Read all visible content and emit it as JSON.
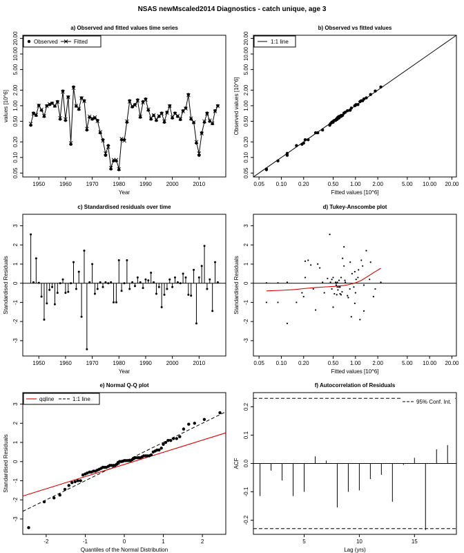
{
  "title": "NSAS newMscaled2014 Diagnostics - catch unique, age 3",
  "chart_data": [
    {
      "id": "a",
      "type": "line",
      "title": "a) Observed and fitted values time series",
      "xlabel": "Year",
      "ylabel": "values [10^6]",
      "log_y": true,
      "xlim": [
        1944,
        2020
      ],
      "ylim": [
        0.042,
        23
      ],
      "x_ticks": [
        1950,
        1960,
        1970,
        1980,
        1990,
        2000,
        2010
      ],
      "y_ticks": [
        0.05,
        0.1,
        0.2,
        0.5,
        1,
        2,
        5,
        10,
        20
      ],
      "y_tick_labels": [
        "0.05",
        "0.10",
        "0.20",
        "0.50",
        "1.00",
        "2.00",
        "5.00",
        "10.00",
        "20.00"
      ],
      "legend": {
        "position": "top-left",
        "entries": [
          "Observed",
          "Fitted"
        ]
      },
      "x": [
        1947,
        1948,
        1949,
        1950,
        1951,
        1952,
        1953,
        1954,
        1955,
        1956,
        1957,
        1958,
        1959,
        1960,
        1961,
        1962,
        1963,
        1964,
        1965,
        1966,
        1967,
        1968,
        1969,
        1970,
        1971,
        1972,
        1973,
        1974,
        1975,
        1976,
        1977,
        1978,
        1979,
        1980,
        1981,
        1982,
        1983,
        1984,
        1985,
        1986,
        1987,
        1988,
        1989,
        1990,
        1991,
        1992,
        1993,
        1994,
        1995,
        1996,
        1997,
        1998,
        1999,
        2000,
        2001,
        2002,
        2003,
        2004,
        2005,
        2006,
        2007,
        2008,
        2009,
        2010,
        2011,
        2012,
        2013,
        2014,
        2015,
        2016,
        2017
      ],
      "series": [
        {
          "name": "Observed",
          "values": [
            0.42,
            0.72,
            0.65,
            1.02,
            0.82,
            0.62,
            1.0,
            1.05,
            1.12,
            0.98,
            1.2,
            0.55,
            1.92,
            0.52,
            1.48,
            0.18,
            2.3,
            0.98,
            0.85,
            1.42,
            1.25,
            0.34,
            0.6,
            0.55,
            0.58,
            0.52,
            0.3,
            0.22,
            0.11,
            0.17,
            0.06,
            0.086,
            0.086,
            0.058,
            0.22,
            0.22,
            0.48,
            1.25,
            0.95,
            1.05,
            1.3,
            0.6,
            1.2,
            1.35,
            0.82,
            0.55,
            0.65,
            0.52,
            0.62,
            0.72,
            0.48,
            0.75,
            1.0,
            0.58,
            0.72,
            0.62,
            0.54,
            0.8,
            0.9,
            1.65,
            0.55,
            0.47,
            0.19,
            0.11,
            0.3,
            0.48,
            0.72,
            0.5,
            0.45,
            0.8,
            1.0
          ]
        },
        {
          "name": "Fitted",
          "values": [
            0.45,
            0.7,
            0.67,
            1.0,
            0.84,
            0.64,
            0.98,
            1.08,
            1.1,
            1.0,
            1.18,
            0.58,
            1.85,
            0.55,
            1.45,
            0.19,
            2.2,
            1.0,
            0.88,
            1.4,
            1.22,
            0.36,
            0.62,
            0.57,
            0.6,
            0.5,
            0.31,
            0.21,
            0.12,
            0.16,
            0.063,
            0.09,
            0.09,
            0.06,
            0.23,
            0.21,
            0.5,
            1.2,
            0.98,
            1.02,
            1.25,
            0.62,
            1.15,
            1.3,
            0.85,
            0.57,
            0.66,
            0.54,
            0.64,
            0.7,
            0.5,
            0.73,
            0.98,
            0.6,
            0.7,
            0.64,
            0.56,
            0.78,
            0.88,
            1.6,
            0.57,
            0.48,
            0.2,
            0.12,
            0.29,
            0.5,
            0.7,
            0.52,
            0.46,
            0.78,
            0.98
          ]
        }
      ]
    },
    {
      "id": "b",
      "type": "scatter",
      "title": "b) Observed vs fitted values",
      "xlabel": "Fitted values [10^6]",
      "ylabel": "Observed values [10^6]",
      "log_x": true,
      "log_y": true,
      "xlim": [
        0.042,
        23
      ],
      "ylim": [
        0.042,
        23
      ],
      "ticks": [
        0.05,
        0.1,
        0.2,
        0.5,
        1,
        2,
        5,
        10,
        20
      ],
      "tick_labels": [
        "0.05",
        "0.10",
        "0.20",
        "0.50",
        "1.00",
        "2.00",
        "5.00",
        "10.00",
        "20.00"
      ],
      "legend": {
        "position": "top-left",
        "entries": [
          "1:1 line"
        ]
      },
      "x": [
        0.063,
        0.063,
        0.09,
        0.12,
        0.12,
        0.16,
        0.19,
        0.2,
        0.21,
        0.21,
        0.23,
        0.29,
        0.31,
        0.36,
        0.45,
        0.46,
        0.48,
        0.48,
        0.5,
        0.5,
        0.52,
        0.54,
        0.55,
        0.56,
        0.57,
        0.57,
        0.58,
        0.6,
        0.6,
        0.62,
        0.64,
        0.64,
        0.67,
        0.7,
        0.7,
        0.73,
        0.78,
        0.84,
        0.85,
        0.88,
        0.98,
        0.98,
        1.0,
        1.02,
        1.08,
        1.15,
        1.2,
        1.25,
        1.3,
        1.4,
        1.6,
        1.85,
        2.2
      ],
      "y": [
        0.058,
        0.06,
        0.086,
        0.11,
        0.12,
        0.17,
        0.18,
        0.19,
        0.22,
        0.22,
        0.22,
        0.3,
        0.3,
        0.34,
        0.42,
        0.45,
        0.47,
        0.48,
        0.48,
        0.5,
        0.52,
        0.52,
        0.55,
        0.54,
        0.55,
        0.58,
        0.6,
        0.62,
        0.58,
        0.62,
        0.65,
        0.62,
        0.65,
        0.72,
        0.72,
        0.75,
        0.8,
        0.82,
        0.82,
        0.9,
        1.0,
        1.0,
        1.02,
        1.05,
        1.05,
        1.2,
        1.25,
        1.25,
        1.35,
        1.42,
        1.65,
        1.92,
        2.3
      ]
    },
    {
      "id": "c",
      "type": "bar",
      "title": "c) Standardised residuals over time",
      "xlabel": "Year",
      "ylabel": "Standardised Residuals",
      "xlim": [
        1944,
        2020
      ],
      "ylim": [
        -3.8,
        3.6
      ],
      "x_ticks": [
        1950,
        1960,
        1970,
        1980,
        1990,
        2000,
        2010
      ],
      "y_ticks": [
        -3,
        -2,
        -1,
        0,
        1,
        2,
        3
      ],
      "x": [
        1947,
        1948,
        1949,
        1950,
        1951,
        1952,
        1953,
        1954,
        1955,
        1956,
        1957,
        1958,
        1959,
        1960,
        1961,
        1962,
        1963,
        1964,
        1965,
        1966,
        1967,
        1968,
        1969,
        1970,
        1971,
        1972,
        1973,
        1974,
        1975,
        1976,
        1977,
        1978,
        1979,
        1980,
        1981,
        1982,
        1983,
        1984,
        1985,
        1986,
        1987,
        1988,
        1989,
        1990,
        1991,
        1992,
        1993,
        1994,
        1995,
        1996,
        1997,
        1998,
        1999,
        2000,
        2001,
        2002,
        2003,
        2004,
        2005,
        2006,
        2007,
        2008,
        2009,
        2010,
        2011,
        2012,
        2013,
        2014,
        2015,
        2016,
        2017
      ],
      "values": [
        2.55,
        0.05,
        1.3,
        0.02,
        -0.7,
        -1.9,
        -1.05,
        -0.35,
        -0.2,
        -1.1,
        -0.5,
        0.0,
        0.2,
        -0.5,
        -0.45,
        0.0,
        1.1,
        -0.3,
        0.6,
        -1.75,
        1.7,
        -3.45,
        0.05,
        1.0,
        -0.55,
        -0.3,
        0.05,
        -0.2,
        0.05,
        0.0,
        0.05,
        -1.0,
        -1.0,
        1.2,
        -0.4,
        0.0,
        1.2,
        -0.3,
        0.05,
        -0.15,
        0.3,
        0.05,
        -0.25,
        0.2,
        0.15,
        0.55,
        0.05,
        -0.55,
        -0.2,
        -1.25,
        -0.6,
        -0.3,
        0.2,
        -0.2,
        0.3,
        0.05,
        0.0,
        0.5,
        0.3,
        -0.6,
        -0.65,
        0.7,
        -2.1,
        0.3,
        0.9,
        1.95,
        -0.3,
        0.2,
        -1.45,
        1.1,
        0.05
      ]
    },
    {
      "id": "d",
      "type": "scatter",
      "title": "d) Tukey-Anscombe plot",
      "xlabel": "Fitted values [10^6]",
      "ylabel": "Standardised Residuals",
      "log_x": true,
      "xlim": [
        0.042,
        23
      ],
      "ylim": [
        -3.8,
        3.6
      ],
      "x_ticks": [
        0.05,
        0.1,
        0.2,
        0.5,
        1,
        2,
        5,
        10,
        20
      ],
      "x_tick_labels": [
        "0.05",
        "0.10",
        "0.20",
        "0.50",
        "1.00",
        "2.00",
        "5.00",
        "10.00",
        "20.00"
      ],
      "y_ticks": [
        -3,
        -2,
        -1,
        0,
        1,
        2,
        3
      ],
      "x": [
        0.063,
        0.063,
        0.09,
        0.09,
        0.12,
        0.12,
        0.16,
        0.19,
        0.2,
        0.21,
        0.21,
        0.23,
        0.29,
        0.31,
        0.36,
        0.45,
        0.46,
        0.48,
        0.48,
        0.5,
        0.5,
        0.52,
        0.54,
        0.55,
        0.56,
        0.57,
        0.57,
        0.58,
        0.6,
        0.6,
        0.62,
        0.64,
        0.64,
        0.66,
        0.67,
        0.7,
        0.7,
        0.73,
        0.78,
        0.84,
        0.85,
        0.88,
        0.98,
        0.98,
        1.0,
        1.02,
        1.08,
        1.15,
        1.2,
        1.25,
        1.3,
        1.4,
        1.6,
        1.85,
        2.2,
        0.25,
        0.27,
        0.33,
        0.38,
        0.42,
        0.55,
        0.62,
        0.72,
        0.8,
        0.9,
        0.95,
        1.1,
        1.3,
        1.55,
        1.75
      ],
      "y": [
        0.02,
        -1.0,
        0.02,
        -1.0,
        -2.1,
        0.05,
        -1.0,
        -0.5,
        -0.7,
        1.15,
        0.3,
        1.2,
        -1.4,
        1.0,
        0.05,
        2.55,
        0.05,
        -0.3,
        0.2,
        0.3,
        -1.25,
        -0.55,
        0.05,
        0.0,
        -0.6,
        -0.2,
        0.05,
        -0.35,
        -0.2,
        0.15,
        -0.2,
        0.3,
        -0.6,
        -0.45,
        1.3,
        1.9,
        0.9,
        0.05,
        -0.65,
        -0.3,
        1.1,
        -1.75,
        0.6,
        -1.05,
        -0.5,
        0.2,
        0.3,
        -1.9,
        1.2,
        0.9,
        -1.45,
        1.7,
        1.1,
        -0.3,
        0.05,
        0.95,
        -0.3,
        0.8,
        -0.5,
        0.25,
        -0.1,
        -0.55,
        0.15,
        -0.75,
        0.5,
        -0.2,
        0.7,
        -0.1,
        0.2,
        -0.7
      ],
      "lowess": {
        "x": [
          0.063,
          0.1,
          0.15,
          0.2,
          0.3,
          0.4,
          0.5,
          0.6,
          0.7,
          0.8,
          1.0,
          1.2,
          1.5,
          1.8,
          2.2
        ],
        "y": [
          -0.4,
          -0.37,
          -0.33,
          -0.28,
          -0.22,
          -0.19,
          -0.17,
          -0.14,
          -0.12,
          -0.08,
          0.02,
          0.15,
          0.38,
          0.58,
          0.78
        ]
      }
    },
    {
      "id": "e",
      "type": "scatter",
      "title": "e) Normal Q-Q plot",
      "xlabel": "Quantiles of the Normal Distribution",
      "ylabel": "Standardised Residuals",
      "xlim": [
        -2.6,
        2.6
      ],
      "ylim": [
        -3.8,
        3.6
      ],
      "x_ticks": [
        -2,
        -1,
        0,
        1,
        2
      ],
      "y_ticks": [
        -3,
        -2,
        -1,
        0,
        1,
        2,
        3
      ],
      "legend": {
        "position": "top-left",
        "entries": [
          "qqline",
          "1:1 line"
        ]
      },
      "x": [
        -2.45,
        -2.05,
        -1.8,
        -1.65,
        -1.52,
        -1.42,
        -1.34,
        -1.26,
        -1.19,
        -1.12,
        -1.06,
        -1.0,
        -0.95,
        -0.89,
        -0.84,
        -0.79,
        -0.74,
        -0.69,
        -0.64,
        -0.59,
        -0.55,
        -0.5,
        -0.46,
        -0.41,
        -0.37,
        -0.33,
        -0.28,
        -0.24,
        -0.2,
        -0.16,
        -0.12,
        -0.08,
        -0.04,
        0.0,
        0.04,
        0.08,
        0.12,
        0.16,
        0.2,
        0.24,
        0.28,
        0.33,
        0.37,
        0.41,
        0.46,
        0.5,
        0.55,
        0.59,
        0.64,
        0.69,
        0.74,
        0.79,
        0.84,
        0.89,
        0.95,
        1.0,
        1.06,
        1.12,
        1.19,
        1.26,
        1.34,
        1.42,
        1.52,
        1.65,
        1.8,
        2.05,
        2.45
      ],
      "y": [
        -3.45,
        -2.1,
        -1.9,
        -1.75,
        -1.45,
        -1.25,
        -1.1,
        -1.05,
        -1.0,
        -1.0,
        -0.7,
        -0.65,
        -0.6,
        -0.55,
        -0.55,
        -0.5,
        -0.5,
        -0.45,
        -0.4,
        -0.35,
        -0.3,
        -0.3,
        -0.3,
        -0.25,
        -0.2,
        -0.2,
        -0.2,
        -0.2,
        -0.15,
        -0.05,
        0.0,
        0.0,
        0.02,
        0.05,
        0.05,
        0.05,
        0.05,
        0.05,
        0.1,
        0.15,
        0.2,
        0.2,
        0.2,
        0.2,
        0.25,
        0.3,
        0.3,
        0.3,
        0.3,
        0.35,
        0.5,
        0.55,
        0.6,
        0.6,
        0.7,
        0.9,
        1.0,
        1.1,
        1.1,
        1.2,
        1.2,
        1.3,
        1.7,
        1.95,
        2.0,
        2.2,
        2.55
      ],
      "qqline": {
        "x": [
          -2.6,
          2.6
        ],
        "y": [
          -1.8,
          1.5
        ]
      },
      "one_to_one": {
        "x": [
          -2.6,
          2.6
        ],
        "y": [
          -2.6,
          2.6
        ]
      }
    },
    {
      "id": "f",
      "type": "bar",
      "title": "f) Autocorrelation of Residuals",
      "xlabel": "Lag (yrs)",
      "ylabel": "ACF",
      "xlim": [
        0.4,
        18.8
      ],
      "ylim": [
        -0.25,
        0.25
      ],
      "x_ticks": [
        5,
        10,
        15
      ],
      "y_ticks": [
        -0.2,
        -0.1,
        0.0,
        0.1,
        0.2
      ],
      "legend": {
        "position": "top-right",
        "entries": [
          "95% Conf. Int."
        ]
      },
      "conf_int": 0.23,
      "x": [
        1,
        2,
        3,
        4,
        5,
        6,
        7,
        8,
        9,
        10,
        11,
        12,
        13,
        14,
        15,
        16,
        17,
        18
      ],
      "values": [
        -0.115,
        -0.025,
        -0.06,
        -0.115,
        -0.1,
        0.025,
        0.01,
        -0.155,
        -0.1,
        -0.095,
        -0.055,
        -0.04,
        -0.135,
        -0.005,
        0.02,
        -0.235,
        0.05,
        0.065
      ]
    }
  ]
}
